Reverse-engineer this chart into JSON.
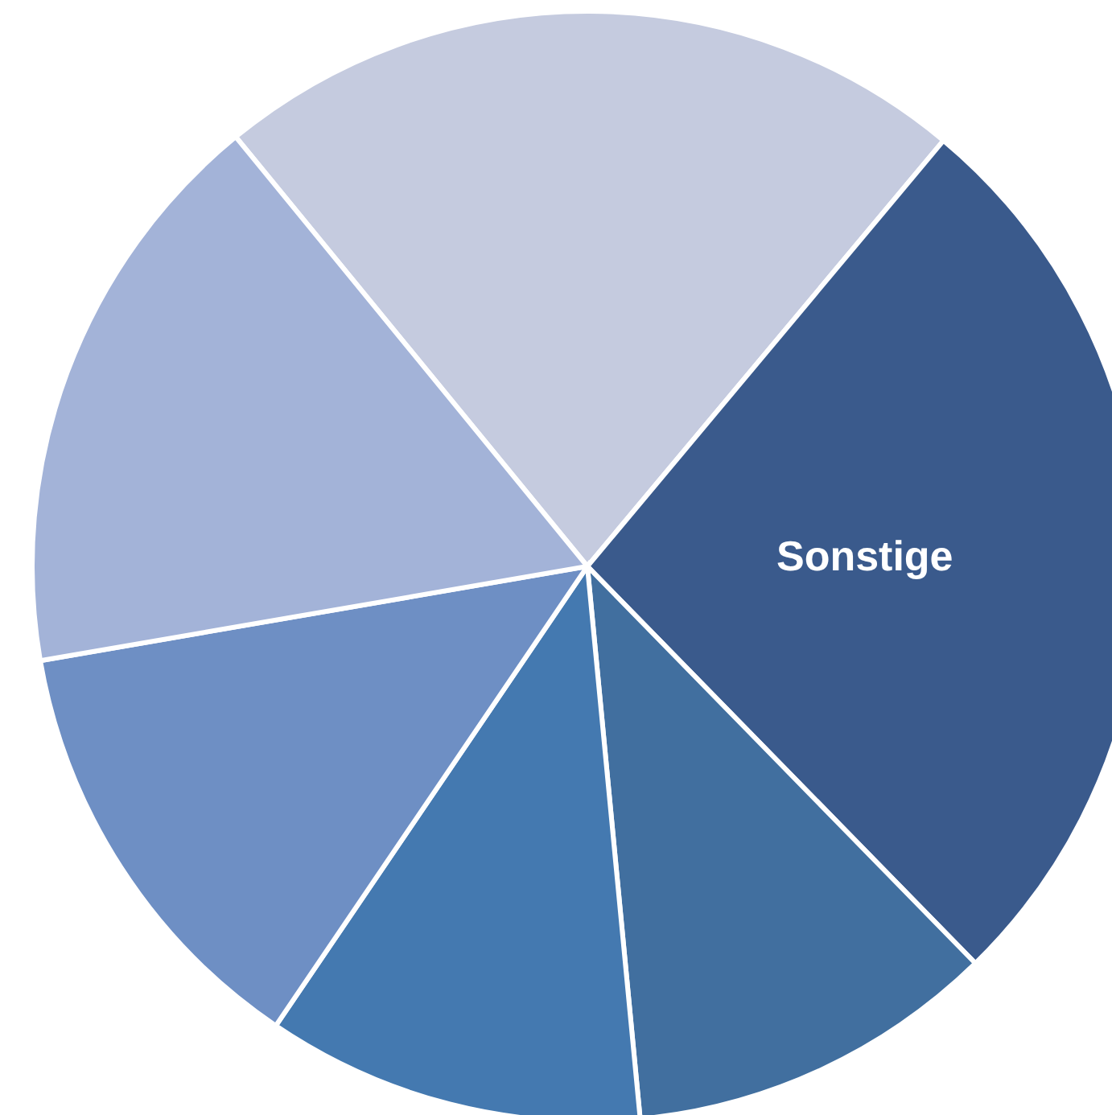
{
  "chart_data": {
    "type": "pie",
    "categories": [
      null,
      "Sonstige",
      null,
      null,
      null,
      null
    ],
    "values": [
      22.0,
      26.6,
      10.8,
      11.0,
      12.8,
      16.8
    ],
    "colors": [
      "#c5cbdf",
      "#3a5a8c",
      "#416f9f",
      "#4479b0",
      "#6e8fc4",
      "#a3b3d8"
    ]
  }
}
